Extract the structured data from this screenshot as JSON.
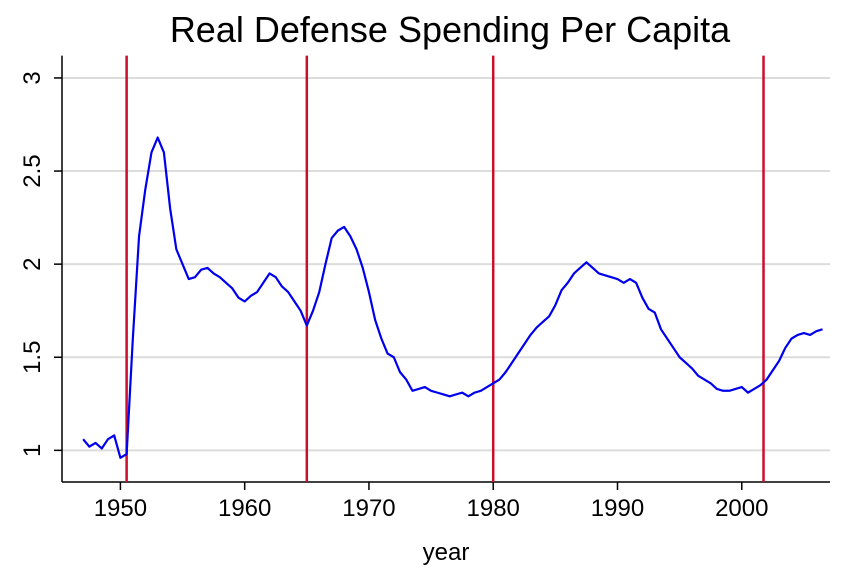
{
  "chart_data": {
    "type": "line",
    "title": "Real Defense Spending Per Capita",
    "xlabel": "year",
    "x": [
      1947.0,
      1947.5,
      1948.0,
      1948.5,
      1949.0,
      1949.5,
      1950.0,
      1950.5,
      1951.0,
      1951.5,
      1952.0,
      1952.5,
      1953.0,
      1953.5,
      1954.0,
      1954.5,
      1955.0,
      1955.5,
      1956.0,
      1956.5,
      1957.0,
      1957.5,
      1958.0,
      1958.5,
      1959.0,
      1959.5,
      1960.0,
      1960.5,
      1961.0,
      1961.5,
      1962.0,
      1962.5,
      1963.0,
      1963.5,
      1964.0,
      1964.5,
      1965.0,
      1965.5,
      1966.0,
      1966.5,
      1967.0,
      1967.5,
      1968.0,
      1968.5,
      1969.0,
      1969.5,
      1970.0,
      1970.5,
      1971.0,
      1971.5,
      1972.0,
      1972.5,
      1973.0,
      1973.5,
      1974.0,
      1974.5,
      1975.0,
      1975.5,
      1976.0,
      1976.5,
      1977.0,
      1977.5,
      1978.0,
      1978.5,
      1979.0,
      1979.5,
      1980.0,
      1980.5,
      1981.0,
      1981.5,
      1982.0,
      1982.5,
      1983.0,
      1983.5,
      1984.0,
      1984.5,
      1985.0,
      1985.5,
      1986.0,
      1986.5,
      1987.0,
      1987.5,
      1988.0,
      1988.5,
      1989.0,
      1989.5,
      1990.0,
      1990.5,
      1991.0,
      1991.5,
      1992.0,
      1992.5,
      1993.0,
      1993.5,
      1994.0,
      1994.5,
      1995.0,
      1995.5,
      1996.0,
      1996.5,
      1997.0,
      1997.5,
      1998.0,
      1998.5,
      1999.0,
      1999.5,
      2000.0,
      2000.5,
      2001.0,
      2001.5,
      2002.0,
      2002.5,
      2003.0,
      2003.5,
      2004.0,
      2004.5,
      2005.0,
      2005.5,
      2006.0,
      2006.5
    ],
    "series": [
      {
        "color": "#0000ee",
        "values": [
          1.06,
          1.02,
          1.04,
          1.01,
          1.06,
          1.08,
          0.96,
          0.98,
          1.6,
          2.15,
          2.4,
          2.6,
          2.68,
          2.6,
          2.3,
          2.08,
          2.0,
          1.92,
          1.93,
          1.97,
          1.98,
          1.95,
          1.93,
          1.9,
          1.87,
          1.82,
          1.8,
          1.83,
          1.85,
          1.9,
          1.95,
          1.93,
          1.88,
          1.85,
          1.8,
          1.75,
          1.67,
          1.75,
          1.85,
          2.0,
          2.14,
          2.18,
          2.2,
          2.15,
          2.08,
          1.98,
          1.85,
          1.7,
          1.6,
          1.52,
          1.5,
          1.42,
          1.38,
          1.32,
          1.33,
          1.34,
          1.32,
          1.31,
          1.3,
          1.29,
          1.3,
          1.31,
          1.29,
          1.31,
          1.32,
          1.34,
          1.36,
          1.38,
          1.42,
          1.47,
          1.52,
          1.57,
          1.62,
          1.66,
          1.69,
          1.72,
          1.78,
          1.86,
          1.9,
          1.95,
          1.98,
          2.01,
          1.98,
          1.95,
          1.94,
          1.93,
          1.92,
          1.9,
          1.92,
          1.9,
          1.82,
          1.76,
          1.74,
          1.65,
          1.6,
          1.55,
          1.5,
          1.47,
          1.44,
          1.4,
          1.38,
          1.36,
          1.33,
          1.32,
          1.32,
          1.33,
          1.34,
          1.31,
          1.33,
          1.35,
          1.38,
          1.43,
          1.48,
          1.55,
          1.6,
          1.62,
          1.63,
          1.62,
          1.64,
          1.65
        ]
      }
    ],
    "xlines": {
      "values": [
        1950.5,
        1965,
        1980,
        2001.75
      ],
      "color": "#c8102e"
    },
    "xlim": [
      1945.3,
      2007.1
    ],
    "xticks": [
      1950,
      1960,
      1970,
      1980,
      1990,
      2000
    ],
    "ylim": [
      0.83,
      3.12
    ],
    "yticks": [
      1,
      1.5,
      2,
      2.5,
      3
    ],
    "grid": true
  }
}
